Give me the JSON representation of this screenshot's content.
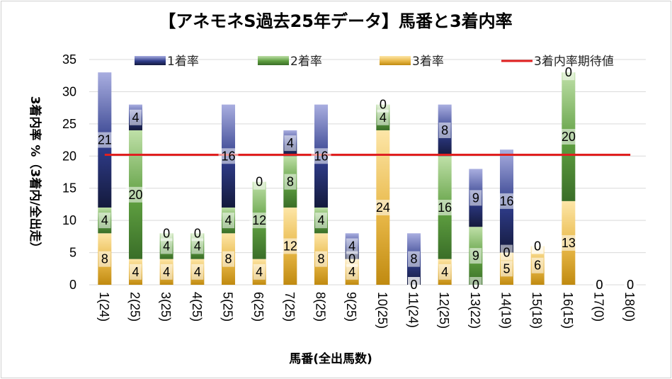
{
  "chart_data": {
    "type": "bar",
    "stacked": true,
    "title": "【アネモネS過去25年データ】馬番と3着内率",
    "xlabel": "馬番(全出馬数)",
    "ylabel": "3着内率 %（3着内/全出走）",
    "ylim": [
      0,
      35
    ],
    "yticks": [
      0,
      5,
      10,
      15,
      20,
      25,
      30,
      35
    ],
    "grid": true,
    "legend_position": "top",
    "categories": [
      "1(24)",
      "2(25)",
      "3(25)",
      "4(25)",
      "5(25)",
      "6(25)",
      "7(25)",
      "8(25)",
      "9(25)",
      "10(25)",
      "11(24)",
      "12(25)",
      "13(22)",
      "14(19)",
      "15(18)",
      "16(15)",
      "17(0)",
      "18(0)"
    ],
    "series": [
      {
        "name": "3着率",
        "color": "#d8a830",
        "values": [
          8,
          4,
          4,
          4,
          8,
          4,
          12,
          8,
          4,
          24,
          0,
          4,
          0,
          5,
          6,
          13,
          0,
          0
        ]
      },
      {
        "name": "2着率",
        "color": "#5a9a3c",
        "values": [
          4,
          20,
          4,
          4,
          4,
          12,
          8,
          4,
          0,
          4,
          0,
          16,
          9,
          0,
          0,
          20,
          0,
          0
        ]
      },
      {
        "name": "1着率",
        "color": "#2f3c8a",
        "values": [
          21,
          4,
          0,
          0,
          16,
          0,
          4,
          16,
          4,
          0,
          8,
          8,
          9,
          16,
          0,
          0,
          0,
          0
        ]
      }
    ],
    "line": {
      "name": "3着内率期待値",
      "color": "#e02020",
      "value": 20.2
    },
    "legend": [
      "1着率",
      "2着率",
      "3着率",
      "3着内率期待値"
    ]
  }
}
